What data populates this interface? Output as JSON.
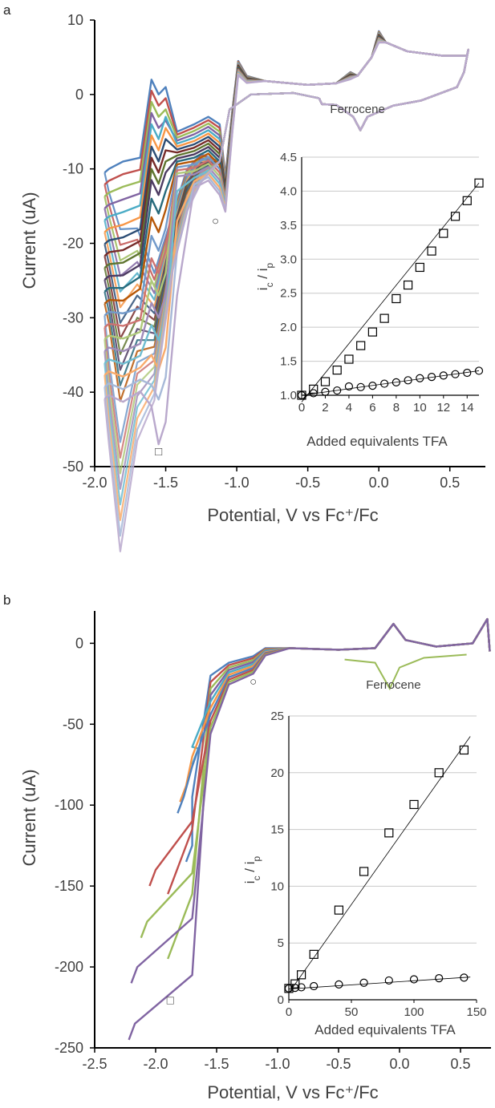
{
  "panels": [
    {
      "label": "a"
    },
    {
      "label": "b"
    }
  ],
  "chart_data": [
    {
      "type": "line",
      "panel": "a",
      "xlabel": "Potential, V vs Fc⁺/Fc",
      "ylabel": "Current (uA)",
      "xlim": [
        -2.0,
        0.75
      ],
      "ylim": [
        -50,
        10
      ],
      "xticks": [
        -2.0,
        -1.5,
        -1.0,
        -0.5,
        0.0,
        0.5
      ],
      "xtick_labels": [
        "-2.0",
        "-1.5",
        "-1.0",
        "-0.5",
        "0.0",
        "0.5"
      ],
      "yticks": [
        -50,
        -40,
        -30,
        -20,
        -10,
        0,
        10
      ],
      "ytick_labels": [
        "-50",
        "-40",
        "-30",
        "-20",
        "-10",
        "0",
        "10"
      ],
      "annotations": [
        {
          "text": "Ferrocene",
          "x": -0.15,
          "y": -2.5
        },
        {
          "text": "○",
          "x": -1.15,
          "y": -17.5
        },
        {
          "text": "□",
          "x": -1.55,
          "y": -48.5
        }
      ],
      "series_count": 20,
      "series_colors": [
        "#4f81bd",
        "#c0504d",
        "#9bbb59",
        "#8064a2",
        "#4bacc6",
        "#f79646",
        "#2c4d75",
        "#772c2a",
        "#5f7530",
        "#4d3b62",
        "#276a7c",
        "#b65708",
        "#729aca",
        "#cd7371",
        "#afc97a",
        "#a08cb9",
        "#6fbdd1",
        "#f9ab6b",
        "#a7b9d8",
        "#b9a8cc"
      ],
      "peak_currents": [
        0,
        -1.5,
        -3,
        -4.5,
        -6,
        -7.5,
        -9,
        -10.5,
        -12,
        -13.5,
        -16,
        -18.5,
        -21,
        -24,
        -27,
        -30,
        -33,
        -37,
        -41,
        -47
      ],
      "inset": {
        "type": "scatter",
        "xlabel": "Added equivalents TFA",
        "ylabel": "i",
        "ylabel_sub_c": "c",
        "ylabel_mid": " / i",
        "ylabel_sub_p": "p",
        "xlim": [
          0,
          15
        ],
        "ylim": [
          1.0,
          4.5
        ],
        "xticks": [
          0,
          2,
          4,
          6,
          8,
          10,
          12,
          14
        ],
        "xtick_labels": [
          "0",
          "2",
          "4",
          "6",
          "8",
          "10",
          "12",
          "14"
        ],
        "yticks": [
          1.0,
          1.5,
          2.0,
          2.5,
          3.0,
          3.5,
          4.0,
          4.5
        ],
        "ytick_labels": [
          "1.0",
          "1.5",
          "2.0",
          "2.5",
          "3.0",
          "3.5",
          "4.0",
          "4.5"
        ],
        "grid": true,
        "series": [
          {
            "marker": "square",
            "x": [
              0,
              1,
              2,
              3,
              4,
              5,
              6,
              7,
              8,
              9,
              10,
              11,
              12,
              13,
              14,
              15
            ],
            "y": [
              1.0,
              1.09,
              1.2,
              1.37,
              1.53,
              1.73,
              1.93,
              2.13,
              2.42,
              2.62,
              2.88,
              3.12,
              3.38,
              3.63,
              3.86,
              4.12
            ],
            "fit": [
              [
                0,
                0.9
              ],
              [
                15,
                4.12
              ]
            ]
          },
          {
            "marker": "circle",
            "x": [
              0,
              1,
              2,
              3,
              4,
              5,
              6,
              7,
              8,
              9,
              10,
              11,
              12,
              13,
              14,
              15
            ],
            "y": [
              1.0,
              1.03,
              1.05,
              1.07,
              1.13,
              1.12,
              1.14,
              1.17,
              1.19,
              1.22,
              1.25,
              1.27,
              1.29,
              1.31,
              1.33,
              1.36
            ],
            "fit": [
              [
                0,
                1.0
              ],
              [
                15,
                1.36
              ]
            ]
          }
        ]
      }
    },
    {
      "type": "line",
      "panel": "b",
      "xlabel": "Potential, V vs Fc⁺/Fc",
      "ylabel": "Current (uA)",
      "xlim": [
        -2.5,
        0.75
      ],
      "ylim": [
        -250,
        20
      ],
      "xticks": [
        -2.5,
        -2.0,
        -1.5,
        -1.0,
        -0.5,
        0.0,
        0.5
      ],
      "xtick_labels": [
        "-2.5",
        "-2.0",
        "-1.5",
        "-1.0",
        "-0.5",
        "0.0",
        "0.5"
      ],
      "yticks": [
        -250,
        -200,
        -150,
        -100,
        -50,
        0
      ],
      "ytick_labels": [
        "-250",
        "-200",
        "-150",
        "-100",
        "-50",
        "0"
      ],
      "annotations": [
        {
          "text": "Ferrocene",
          "x": -0.05,
          "y": -28
        },
        {
          "text": "○",
          "x": -1.2,
          "y": -26
        },
        {
          "text": "□",
          "x": -1.88,
          "y": -223
        }
      ],
      "series_count": 10,
      "series_colors": [
        "#4f81bd",
        "#c0504d",
        "#9bbb59",
        "#8064a2",
        "#4bacc6",
        "#f79646",
        "#4f81bd",
        "#c0504d",
        "#9bbb59",
        "#8064a2"
      ],
      "inset": {
        "type": "scatter",
        "xlabel": "Added equivalents TFA",
        "ylabel": "i",
        "ylabel_sub_c": "c",
        "ylabel_mid": " / i",
        "ylabel_sub_p": "p",
        "xlim": [
          0,
          150
        ],
        "ylim": [
          0,
          25
        ],
        "xticks": [
          0,
          50,
          100,
          150
        ],
        "xtick_labels": [
          "0",
          "50",
          "100",
          "150"
        ],
        "yticks": [
          0,
          5,
          10,
          15,
          20,
          25
        ],
        "ytick_labels": [
          "0",
          "5",
          "10",
          "15",
          "20",
          "25"
        ],
        "grid": true,
        "series": [
          {
            "marker": "square",
            "x": [
              0,
              5,
              10,
              20,
              40,
              60,
              80,
              100,
              120,
              140
            ],
            "y": [
              1.0,
              1.4,
              2.2,
              4.0,
              7.9,
              11.3,
              14.7,
              17.2,
              20.0,
              22.0
            ],
            "fit": [
              [
                0,
                0.6
              ],
              [
                145,
                23.2
              ]
            ]
          },
          {
            "marker": "circle",
            "x": [
              0,
              5,
              10,
              20,
              40,
              60,
              80,
              100,
              120,
              140
            ],
            "y": [
              1.0,
              1.05,
              1.1,
              1.2,
              1.35,
              1.5,
              1.7,
              1.8,
              1.9,
              1.95
            ],
            "fit": [
              [
                0,
                0.95
              ],
              [
                145,
                2.0
              ]
            ]
          }
        ]
      }
    }
  ]
}
